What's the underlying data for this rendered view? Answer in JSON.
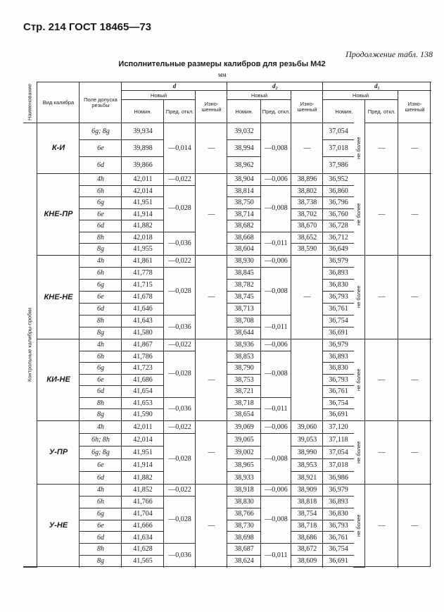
{
  "header": {
    "page": "Стр. 214 ГОСТ 18465—73",
    "continuation": "Продолжение табл. 138",
    "title": "Исполнительные размеры калибров для резьбы М42",
    "unit": "мм"
  },
  "table": {
    "columns": {
      "name": "Наименование",
      "gauge_type": "Вид калибра",
      "tolerance": "Поле допуска резьбы",
      "d": "d",
      "d2": "d₂",
      "d1": "d₁",
      "new": "Новый",
      "nominal": "Номин.",
      "deviation": "Пред. откл.",
      "worn": "Изно-шенный"
    },
    "side_label": "Контрольные калибры-пробки",
    "groups": [
      {
        "name": "К-И",
        "rows": [
          {
            "tolerance": "6g; 8g",
            "d_nominal": "39,934",
            "d2_nominal": "39,032",
            "d1_nominal": "37,054"
          },
          {
            "tolerance": "6e",
            "d_nominal": "39,898",
            "d2_nominal": "38,994",
            "d1_nominal": "37,018"
          },
          {
            "tolerance": "6d",
            "d_nominal": "39,866",
            "d2_nominal": "38,962",
            "d1_nominal": "37,986"
          }
        ],
        "d_deviation": [
          "—0,014"
        ],
        "d_worn": "—",
        "d2_deviation": [
          "—0,008"
        ],
        "d2_worn": "—",
        "d1_note": "не более",
        "d1_deviation": "—",
        "d1_worn": "—"
      },
      {
        "name": "КНЕ-ПР",
        "rows": [
          {
            "tolerance": "4h",
            "d_nominal": "42,011",
            "d2_nominal": "38,904",
            "d2_worn": "38,896",
            "d1_nominal": "36,952"
          },
          {
            "tolerance": "6h",
            "d_nominal": "42,014",
            "d2_nominal": "38,814",
            "d2_worn": "38,802",
            "d1_nominal": "36,860"
          },
          {
            "tolerance": "6g",
            "d_nominal": "41,951",
            "d2_nominal": "38,750",
            "d2_worn": "38,738",
            "d1_nominal": "36,796"
          },
          {
            "tolerance": "6e",
            "d_nominal": "41,914",
            "d2_nominal": "38,714",
            "d2_worn": "38,702",
            "d1_nominal": "36,760"
          },
          {
            "tolerance": "6d",
            "d_nominal": "41,882",
            "d2_nominal": "38,682",
            "d2_worn": "38,670",
            "d1_nominal": "36,728"
          },
          {
            "tolerance": "8h",
            "d_nominal": "42,018",
            "d2_nominal": "38,668",
            "d2_worn": "38,652",
            "d1_nominal": "36,712"
          },
          {
            "tolerance": "8g",
            "d_nominal": "41,955",
            "d2_nominal": "38,604",
            "d2_worn": "38,590",
            "d1_nominal": "36,649"
          }
        ],
        "d_deviation": [
          "—0,022",
          "—0,028",
          "—0,036"
        ],
        "d_worn": "—",
        "d2_deviation": [
          "—0,006",
          "—0,008",
          "—0,011"
        ],
        "d1_note": "не более",
        "d1_deviation": "—",
        "d1_worn": "—"
      },
      {
        "name": "КНЕ-НЕ",
        "rows": [
          {
            "tolerance": "4h",
            "d_nominal": "41,861",
            "d2_nominal": "38,930",
            "d1_nominal": "36,979"
          },
          {
            "tolerance": "6h",
            "d_nominal": "41,778",
            "d2_nominal": "38,845",
            "d1_nominal": "36,893"
          },
          {
            "tolerance": "6g",
            "d_nominal": "41,715",
            "d2_nominal": "38,782",
            "d1_nominal": "36,830"
          },
          {
            "tolerance": "6e",
            "d_nominal": "41,678",
            "d2_nominal": "38,745",
            "d1_nominal": "36,793"
          },
          {
            "tolerance": "6d",
            "d_nominal": "41,646",
            "d2_nominal": "38,713",
            "d1_nominal": "36,761"
          },
          {
            "tolerance": "8h",
            "d_nominal": "41,643",
            "d2_nominal": "38,708",
            "d1_nominal": "36,754"
          },
          {
            "tolerance": "8g",
            "d_nominal": "41,580",
            "d2_nominal": "38,644",
            "d1_nominal": "36,691"
          }
        ],
        "d_deviation": [
          "—0,022",
          "—0,028",
          "—0,036"
        ],
        "d_worn": "—",
        "d2_deviation": [
          "—0,006",
          "—0,008",
          "—0,011"
        ],
        "d2_worn": "—",
        "d1_note": "не более",
        "d1_deviation": "—",
        "d1_worn": "—"
      },
      {
        "name": "КИ-НЕ",
        "rows": [
          {
            "tolerance": "4h",
            "d_nominal": "41,867",
            "d2_nominal": "38,936",
            "d1_nominal": "36,979"
          },
          {
            "tolerance": "6h",
            "d_nominal": "41,786",
            "d2_nominal": "38,853",
            "d1_nominal": "36,893"
          },
          {
            "tolerance": "6g",
            "d_nominal": "41,723",
            "d2_nominal": "38,790",
            "d1_nominal": "36,830"
          },
          {
            "tolerance": "6e",
            "d_nominal": "41,686",
            "d2_nominal": "38,753",
            "d1_nominal": "36,793"
          },
          {
            "tolerance": "6d",
            "d_nominal": "41,654",
            "d2_nominal": "38,721",
            "d1_nominal": "36,761"
          },
          {
            "tolerance": "8h",
            "d_nominal": "41,653",
            "d2_nominal": "38,718",
            "d1_nominal": "36,754"
          },
          {
            "tolerance": "8g",
            "d_nominal": "41,590",
            "d2_nominal": "38,654",
            "d1_nominal": "36,691"
          }
        ],
        "d_deviation": [
          "—0,022",
          "—0,028",
          "—0,036"
        ],
        "d_worn": "—",
        "d2_deviation": [
          "—0,006",
          "—0,008",
          "—0,011"
        ],
        "d1_note": "не более",
        "d1_deviation": "—",
        "d1_worn": "—"
      },
      {
        "name": "У-ПР",
        "rows": [
          {
            "tolerance": "4h",
            "d_nominal": "42,011",
            "d2_nominal": "39,069",
            "d2_worn": "39,060",
            "d1_nominal": "37,120"
          },
          {
            "tolerance": "6h; 8h",
            "d_nominal": "42,014",
            "d2_nominal": "39,065",
            "d2_worn": "39,053",
            "d1_nominal": "37,118"
          },
          {
            "tolerance": "6g; 8g",
            "d_nominal": "41,951",
            "d2_nominal": "39,002",
            "d2_worn": "38,990",
            "d1_nominal": "37,054"
          },
          {
            "tolerance": "6e",
            "d_nominal": "41,914",
            "d2_nominal": "38,965",
            "d2_worn": "38,953",
            "d1_nominal": "37,018"
          },
          {
            "tolerance": "6d",
            "d_nominal": "41,882",
            "d2_nominal": "38,933",
            "d2_worn": "38,921",
            "d1_nominal": "36,986"
          }
        ],
        "d_deviation": [
          "—0,022",
          "—0,028"
        ],
        "d_worn": "—",
        "d2_deviation": [
          "—0,006",
          "—0,008"
        ],
        "d1_note": "не более",
        "d1_deviation": "—",
        "d1_worn": "—"
      },
      {
        "name": "У-НЕ",
        "rows": [
          {
            "tolerance": "4h",
            "d_nominal": "41,852",
            "d2_nominal": "38,918",
            "d2_worn": "38,909",
            "d1_nominal": "36,979"
          },
          {
            "tolerance": "6h",
            "d_nominal": "41,766",
            "d2_nominal": "38,830",
            "d2_worn": "38,818",
            "d1_nominal": "36,893"
          },
          {
            "tolerance": "6g",
            "d_nominal": "41,704",
            "d2_nominal": "38,766",
            "d2_worn": "38,754",
            "d1_nominal": "36,830"
          },
          {
            "tolerance": "6e",
            "d_nominal": "41,666",
            "d2_nominal": "38,730",
            "d2_worn": "38,718",
            "d1_nominal": "36,793"
          },
          {
            "tolerance": "6d",
            "d_nominal": "41,634",
            "d2_nominal": "38,698",
            "d2_worn": "38,686",
            "d1_nominal": "36,761"
          },
          {
            "tolerance": "8h",
            "d_nominal": "41,628",
            "d2_nominal": "38,687",
            "d2_worn": "38,672",
            "d1_nominal": "36,754"
          },
          {
            "tolerance": "8g",
            "d_nominal": "41,565",
            "d2_nominal": "38,624",
            "d2_worn": "38,609",
            "d1_nominal": "36,691"
          }
        ],
        "d_deviation": [
          "—0,022",
          "—0,028",
          "—0,036"
        ],
        "d_worn": "—",
        "d2_deviation": [
          "—0,006",
          "—0,008",
          "—0,011"
        ],
        "d1_note": "не более",
        "d1_deviation": "—",
        "d1_worn": "—"
      }
    ]
  }
}
